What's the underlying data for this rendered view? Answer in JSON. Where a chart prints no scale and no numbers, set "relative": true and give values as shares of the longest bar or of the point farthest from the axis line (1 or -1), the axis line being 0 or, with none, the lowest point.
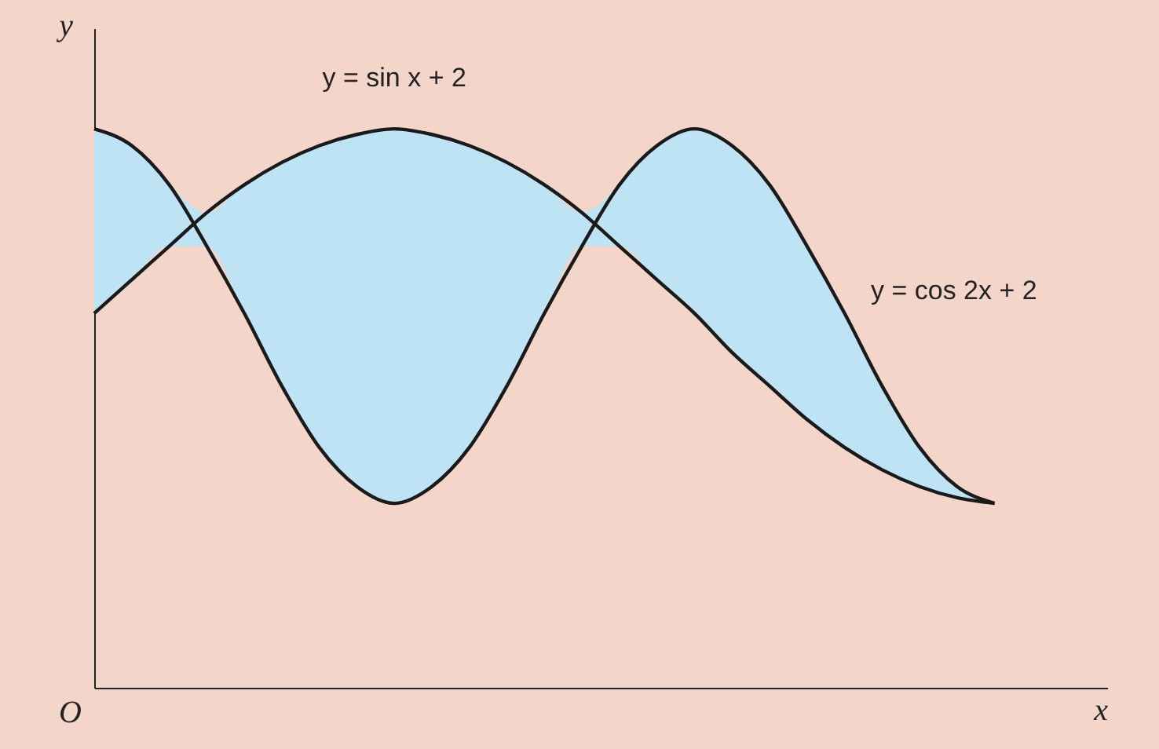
{
  "chart_data": {
    "type": "line",
    "relative": true,
    "xlabel": "x",
    "ylabel": "y",
    "annotations": [
      "O"
    ],
    "categories": [
      null,
      null,
      null,
      null,
      null,
      null,
      null,
      null,
      null,
      null,
      null,
      null,
      null,
      null,
      null,
      null,
      null,
      null,
      null,
      null,
      null,
      null,
      null,
      null,
      null
    ],
    "series": [
      {
        "name": "y = sin x + 2",
        "color": "#1a1a1a",
        "values": [
          0.67,
          0.73,
          0.79,
          0.85,
          0.9,
          0.94,
          0.97,
          0.99,
          1,
          0.99,
          0.97,
          0.94,
          0.9,
          0.85,
          0.79,
          0.73,
          0.67,
          0.6,
          0.54,
          0.48,
          0.43,
          0.39,
          0.36,
          0.34,
          0.33
        ],
        "lower": [
          0.67,
          0.73,
          0.79,
          0.79,
          0.67,
          0.54,
          0.43,
          0.36,
          0.33,
          0.36,
          0.43,
          0.54,
          0.67,
          0.79,
          0.79,
          0.73,
          0.67,
          0.6,
          0.54,
          0.48,
          0.43,
          0.39,
          0.36,
          0.34,
          0.33
        ],
        "upper": [
          1,
          0.97,
          0.9,
          0.85,
          0.9,
          0.94,
          0.97,
          0.99,
          1,
          0.99,
          0.97,
          0.94,
          0.9,
          0.85,
          0.9,
          0.97,
          1,
          0.97,
          0.9,
          0.79,
          0.67,
          0.54,
          0.43,
          0.36,
          0.33
        ]
      },
      {
        "name": "y = cos 2x + 2",
        "color": "#1a1a1a",
        "values": [
          1,
          0.97,
          0.9,
          0.79,
          0.67,
          0.54,
          0.43,
          0.36,
          0.33,
          0.36,
          0.43,
          0.54,
          0.67,
          0.79,
          0.9,
          0.97,
          1,
          0.97,
          0.9,
          0.79,
          0.67,
          0.54,
          0.43,
          0.36,
          0.33
        ]
      }
    ],
    "marker": "none",
    "line_style": "solid"
  }
}
